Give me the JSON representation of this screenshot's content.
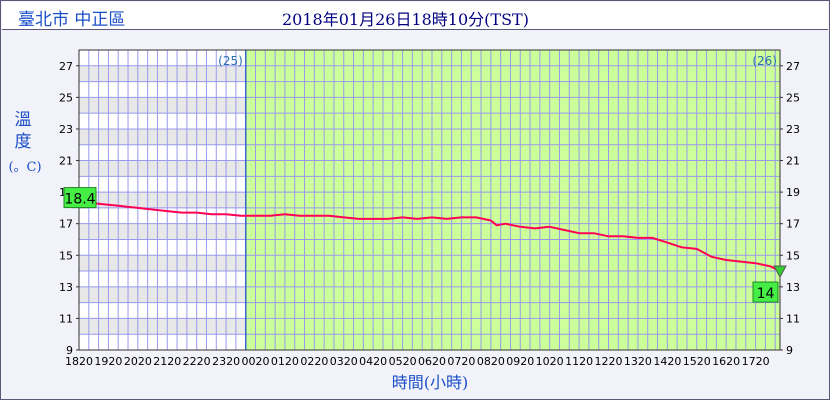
{
  "header": {
    "location": "臺北市 中正區",
    "timestamp": "2018年01月26日18時10分(TST)"
  },
  "colors": {
    "line": "#ff0055",
    "today_bg": "#ccff99",
    "stripe": "#e8e8e8",
    "grid": "#9999ee",
    "text": "#1a4fc8"
  },
  "chart_data": {
    "type": "line",
    "ylabel_chars": [
      "溫",
      "度"
    ],
    "yunit": "(。C)",
    "xlabel": "時間(小時)",
    "ylim": [
      9,
      28
    ],
    "y_ticks": [
      9,
      11,
      13,
      15,
      17,
      19,
      21,
      23,
      25,
      27
    ],
    "x_tick_labels": [
      "1820",
      "1920",
      "2020",
      "2120",
      "2220",
      "2320",
      "0020",
      "0120",
      "0220",
      "0320",
      "0420",
      "0520",
      "0620",
      "0720",
      "0820",
      "0920",
      "1020",
      "1120",
      "1220",
      "1320",
      "1420",
      "1520",
      "1620",
      "1720"
    ],
    "day_labels": [
      "(25)",
      "(26)"
    ],
    "day_boundary_hours": 5.67,
    "x_range_hours": [
      0,
      23.83
    ],
    "start_value_label": "18.4",
    "end_value_label": "14",
    "series": [
      {
        "x": [
          0,
          0.5,
          1,
          1.5,
          2,
          2.5,
          3,
          3.5,
          4,
          4.5,
          5,
          5.5,
          6,
          6.5,
          7,
          7.5,
          8,
          8.5,
          9,
          9.5,
          10,
          10.5,
          11,
          11.5,
          12,
          12.5,
          13,
          13.5,
          14,
          14.2,
          14.5,
          15,
          15.5,
          16,
          16.5,
          17,
          17.5,
          18,
          18.5,
          19,
          19.5,
          20,
          20.5,
          21,
          21.5,
          22,
          22.5,
          23,
          23.5,
          23.83
        ],
        "y": [
          18.4,
          18.3,
          18.2,
          18.1,
          18.0,
          17.9,
          17.8,
          17.7,
          17.7,
          17.6,
          17.6,
          17.5,
          17.5,
          17.5,
          17.6,
          17.5,
          17.5,
          17.5,
          17.4,
          17.3,
          17.3,
          17.3,
          17.4,
          17.3,
          17.4,
          17.3,
          17.4,
          17.4,
          17.2,
          16.9,
          17.0,
          16.8,
          16.7,
          16.8,
          16.6,
          16.4,
          16.4,
          16.2,
          16.2,
          16.1,
          16.1,
          15.8,
          15.5,
          15.4,
          14.9,
          14.7,
          14.6,
          14.5,
          14.3,
          14.0
        ]
      }
    ]
  }
}
